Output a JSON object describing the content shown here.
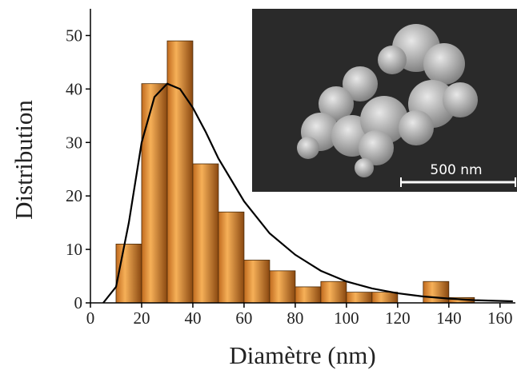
{
  "chart_data": {
    "type": "histogram",
    "x_label": "Diamètre (nm)",
    "y_label": "Distribution",
    "bins": [
      10,
      20,
      30,
      40,
      50,
      60,
      70,
      80,
      90,
      100,
      110,
      120,
      130,
      140,
      150
    ],
    "values": [
      11,
      41,
      49,
      26,
      17,
      8,
      6,
      3,
      4,
      2,
      2,
      0,
      4,
      1
    ],
    "color": "#e8902e",
    "fit": {
      "color": "#000000",
      "x": [
        5,
        10,
        15,
        20,
        25,
        30,
        35,
        40,
        45,
        50,
        60,
        70,
        80,
        90,
        100,
        110,
        120,
        130,
        140,
        150,
        165
      ],
      "values": [
        0,
        3,
        15,
        30,
        38.5,
        41,
        40,
        36.5,
        32,
        27,
        19,
        13,
        9,
        6,
        4,
        2.7,
        1.8,
        1.2,
        0.8,
        0.5,
        0.3
      ]
    },
    "xlim": [
      0,
      166
    ],
    "ylim": [
      0,
      55
    ],
    "xticks": [
      0,
      20,
      40,
      60,
      80,
      100,
      120,
      140,
      160
    ],
    "yticks": [
      0,
      10,
      20,
      30,
      40,
      50
    ],
    "inset": {
      "scale_bar": "500 nm"
    }
  }
}
